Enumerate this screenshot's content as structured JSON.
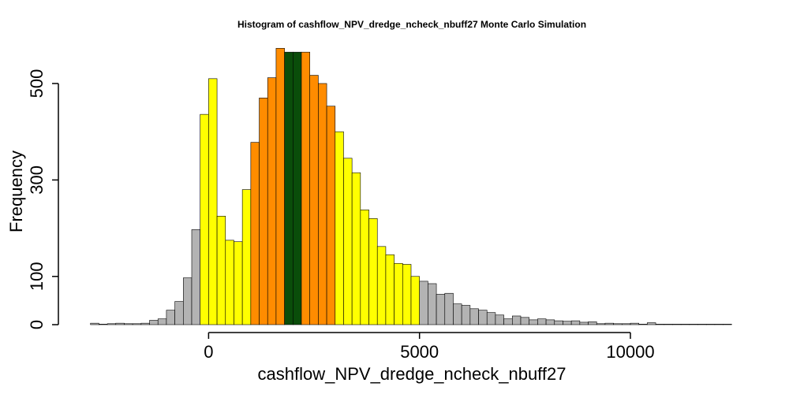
{
  "chart_data": {
    "type": "bar",
    "title": "Histogram of  cashflow_NPV_dredge_ncheck_nbuff27  Monte Carlo Simulation",
    "xlabel": "cashflow_NPV_dredge_ncheck_nbuff27",
    "ylabel": "Frequency",
    "bin_width": 200,
    "xlim": [
      -3000,
      12600
    ],
    "ylim": [
      0,
      580
    ],
    "x_ticks": [
      0,
      5000,
      10000
    ],
    "x_tick_labels": [
      "0",
      "5000",
      "10000"
    ],
    "y_ticks": [
      0,
      100,
      300,
      500
    ],
    "y_tick_labels": [
      "0",
      "100",
      "300",
      "500"
    ],
    "grid": false,
    "legend": "none",
    "colors": {
      "gray": "#b3b3b3",
      "yellow": "#ffff00",
      "orange": "#ff8c00",
      "green": "#0a4d0a",
      "border": "#000000"
    },
    "bins": [
      {
        "x0": -2800,
        "x1": -2600,
        "count": 3,
        "color": "gray"
      },
      {
        "x0": -2600,
        "x1": -2400,
        "count": 1,
        "color": "gray"
      },
      {
        "x0": -2400,
        "x1": -2200,
        "count": 2,
        "color": "gray"
      },
      {
        "x0": -2200,
        "x1": -2000,
        "count": 3,
        "color": "gray"
      },
      {
        "x0": -2000,
        "x1": -1800,
        "count": 2,
        "color": "gray"
      },
      {
        "x0": -1800,
        "x1": -1600,
        "count": 2,
        "color": "gray"
      },
      {
        "x0": -1600,
        "x1": -1400,
        "count": 3,
        "color": "gray"
      },
      {
        "x0": -1400,
        "x1": -1200,
        "count": 9,
        "color": "gray"
      },
      {
        "x0": -1200,
        "x1": -1000,
        "count": 12,
        "color": "gray"
      },
      {
        "x0": -1000,
        "x1": -800,
        "count": 30,
        "color": "gray"
      },
      {
        "x0": -800,
        "x1": -600,
        "count": 48,
        "color": "gray"
      },
      {
        "x0": -600,
        "x1": -400,
        "count": 97,
        "color": "gray"
      },
      {
        "x0": -400,
        "x1": -200,
        "count": 197,
        "color": "gray"
      },
      {
        "x0": -200,
        "x1": 0,
        "count": 436,
        "color": "yellow"
      },
      {
        "x0": 0,
        "x1": 200,
        "count": 510,
        "color": "yellow"
      },
      {
        "x0": 200,
        "x1": 400,
        "count": 225,
        "color": "yellow"
      },
      {
        "x0": 400,
        "x1": 600,
        "count": 175,
        "color": "yellow"
      },
      {
        "x0": 600,
        "x1": 800,
        "count": 172,
        "color": "yellow"
      },
      {
        "x0": 800,
        "x1": 1000,
        "count": 280,
        "color": "yellow"
      },
      {
        "x0": 1000,
        "x1": 1200,
        "count": 378,
        "color": "orange"
      },
      {
        "x0": 1200,
        "x1": 1400,
        "count": 470,
        "color": "orange"
      },
      {
        "x0": 1400,
        "x1": 1600,
        "count": 512,
        "color": "orange"
      },
      {
        "x0": 1600,
        "x1": 1800,
        "count": 573,
        "color": "orange"
      },
      {
        "x0": 1800,
        "x1": 2000,
        "count": 565,
        "color": "green"
      },
      {
        "x0": 2000,
        "x1": 2200,
        "count": 565,
        "color": "green"
      },
      {
        "x0": 2200,
        "x1": 2400,
        "count": 565,
        "color": "orange"
      },
      {
        "x0": 2400,
        "x1": 2600,
        "count": 517,
        "color": "orange"
      },
      {
        "x0": 2600,
        "x1": 2800,
        "count": 500,
        "color": "orange"
      },
      {
        "x0": 2800,
        "x1": 3000,
        "count": 453,
        "color": "orange"
      },
      {
        "x0": 3000,
        "x1": 3200,
        "count": 400,
        "color": "yellow"
      },
      {
        "x0": 3200,
        "x1": 3400,
        "count": 345,
        "color": "yellow"
      },
      {
        "x0": 3400,
        "x1": 3600,
        "count": 315,
        "color": "yellow"
      },
      {
        "x0": 3600,
        "x1": 3800,
        "count": 238,
        "color": "yellow"
      },
      {
        "x0": 3800,
        "x1": 4000,
        "count": 220,
        "color": "yellow"
      },
      {
        "x0": 4000,
        "x1": 4200,
        "count": 162,
        "color": "yellow"
      },
      {
        "x0": 4200,
        "x1": 4400,
        "count": 145,
        "color": "yellow"
      },
      {
        "x0": 4400,
        "x1": 4600,
        "count": 127,
        "color": "yellow"
      },
      {
        "x0": 4600,
        "x1": 4800,
        "count": 125,
        "color": "yellow"
      },
      {
        "x0": 4800,
        "x1": 5000,
        "count": 100,
        "color": "yellow"
      },
      {
        "x0": 5000,
        "x1": 5200,
        "count": 90,
        "color": "gray"
      },
      {
        "x0": 5200,
        "x1": 5400,
        "count": 85,
        "color": "gray"
      },
      {
        "x0": 5400,
        "x1": 5600,
        "count": 63,
        "color": "gray"
      },
      {
        "x0": 5600,
        "x1": 5800,
        "count": 65,
        "color": "gray"
      },
      {
        "x0": 5800,
        "x1": 6000,
        "count": 43,
        "color": "gray"
      },
      {
        "x0": 6000,
        "x1": 6200,
        "count": 40,
        "color": "gray"
      },
      {
        "x0": 6200,
        "x1": 6400,
        "count": 33,
        "color": "gray"
      },
      {
        "x0": 6400,
        "x1": 6600,
        "count": 30,
        "color": "gray"
      },
      {
        "x0": 6600,
        "x1": 6800,
        "count": 25,
        "color": "gray"
      },
      {
        "x0": 6800,
        "x1": 7000,
        "count": 20,
        "color": "gray"
      },
      {
        "x0": 7000,
        "x1": 7200,
        "count": 12,
        "color": "gray"
      },
      {
        "x0": 7200,
        "x1": 7400,
        "count": 18,
        "color": "gray"
      },
      {
        "x0": 7400,
        "x1": 7600,
        "count": 15,
        "color": "gray"
      },
      {
        "x0": 7600,
        "x1": 7800,
        "count": 10,
        "color": "gray"
      },
      {
        "x0": 7800,
        "x1": 8000,
        "count": 12,
        "color": "gray"
      },
      {
        "x0": 8000,
        "x1": 8200,
        "count": 10,
        "color": "gray"
      },
      {
        "x0": 8200,
        "x1": 8400,
        "count": 8,
        "color": "gray"
      },
      {
        "x0": 8400,
        "x1": 8600,
        "count": 7,
        "color": "gray"
      },
      {
        "x0": 8600,
        "x1": 8800,
        "count": 8,
        "color": "gray"
      },
      {
        "x0": 8800,
        "x1": 9000,
        "count": 5,
        "color": "gray"
      },
      {
        "x0": 9000,
        "x1": 9200,
        "count": 6,
        "color": "gray"
      },
      {
        "x0": 9200,
        "x1": 9400,
        "count": 2,
        "color": "gray"
      },
      {
        "x0": 9400,
        "x1": 9600,
        "count": 3,
        "color": "gray"
      },
      {
        "x0": 9600,
        "x1": 9800,
        "count": 2,
        "color": "gray"
      },
      {
        "x0": 9800,
        "x1": 10000,
        "count": 2,
        "color": "gray"
      },
      {
        "x0": 10000,
        "x1": 10200,
        "count": 3,
        "color": "gray"
      },
      {
        "x0": 10200,
        "x1": 10400,
        "count": 1,
        "color": "gray"
      },
      {
        "x0": 10400,
        "x1": 10600,
        "count": 4,
        "color": "gray"
      },
      {
        "x0": 10600,
        "x1": 10800,
        "count": 1,
        "color": "gray"
      },
      {
        "x0": 10800,
        "x1": 11000,
        "count": 1,
        "color": "gray"
      },
      {
        "x0": 11000,
        "x1": 11200,
        "count": 1,
        "color": "gray"
      },
      {
        "x0": 11200,
        "x1": 11400,
        "count": 1,
        "color": "gray"
      },
      {
        "x0": 11400,
        "x1": 11600,
        "count": 1,
        "color": "gray"
      },
      {
        "x0": 11600,
        "x1": 11800,
        "count": 1,
        "color": "gray"
      },
      {
        "x0": 11800,
        "x1": 12000,
        "count": 1,
        "color": "gray"
      },
      {
        "x0": 12000,
        "x1": 12200,
        "count": 1,
        "color": "gray"
      },
      {
        "x0": 12200,
        "x1": 12400,
        "count": 1,
        "color": "gray"
      }
    ]
  }
}
